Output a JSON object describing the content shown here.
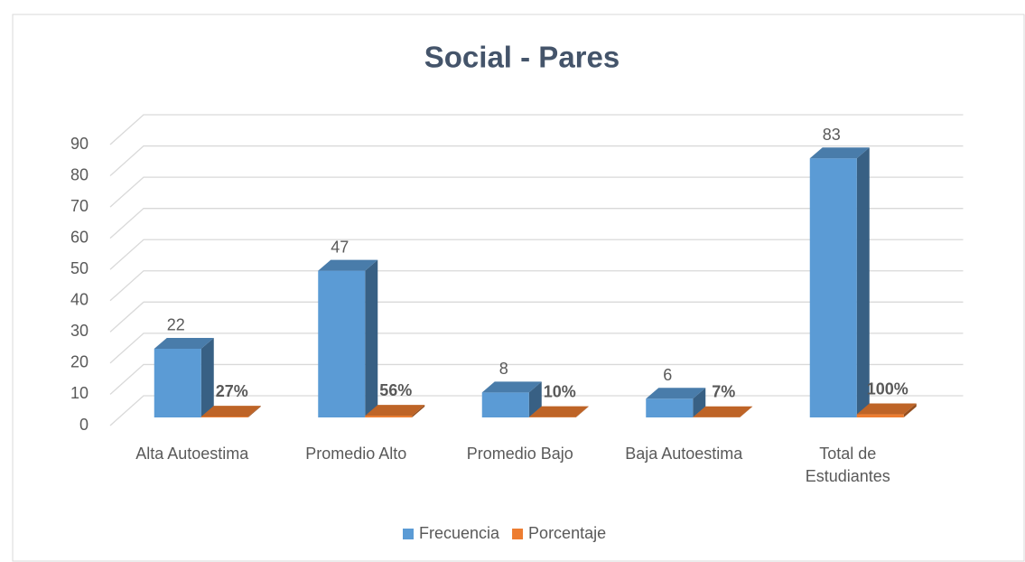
{
  "chart_data": {
    "type": "bar3d",
    "title": "Social - Pares",
    "categories": [
      "Alta Autoestima",
      "Promedio Alto",
      "Promedio Bajo",
      "Baja Autoestima",
      "Total de Estudiantes"
    ],
    "series": [
      {
        "name": "Frecuencia",
        "color": "#5b9bd5",
        "values": [
          22,
          47,
          8,
          6,
          83
        ]
      },
      {
        "name": "Porcentaje",
        "color": "#ed7d31",
        "values": [
          0.27,
          0.56,
          0.1,
          0.07,
          1
        ],
        "value_labels": [
          "27%",
          "56%",
          "10%",
          "7%",
          "100%"
        ]
      }
    ],
    "ylim": [
      0,
      90
    ],
    "yticks": [
      0,
      10,
      20,
      30,
      40,
      50,
      60,
      70,
      80,
      90
    ],
    "grid": true,
    "legend": "bottom"
  }
}
